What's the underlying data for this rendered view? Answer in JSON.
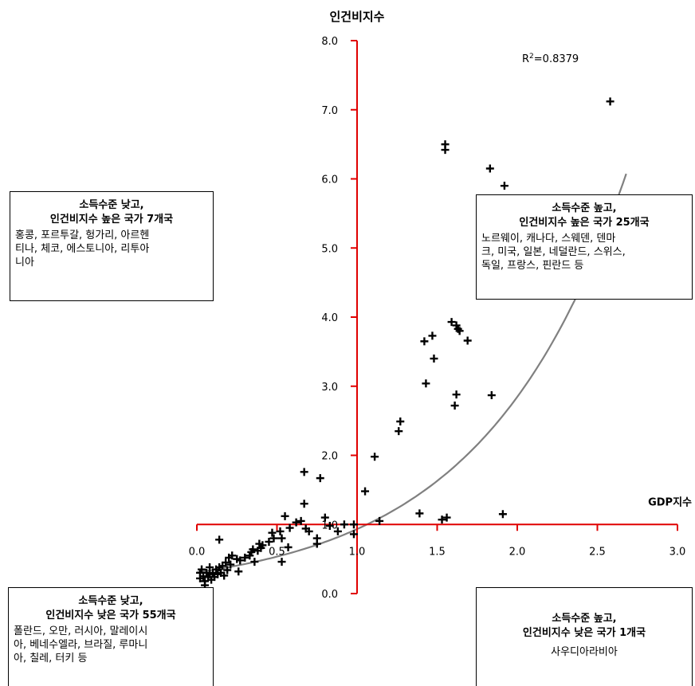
{
  "chart_data": {
    "type": "scatter",
    "ylabel": "인건비지수",
    "xlabel": "GDP지수",
    "xlim": [
      0.0,
      3.0
    ],
    "ylim": [
      0.0,
      8.0
    ],
    "x_ticks": [
      "0.0",
      "0.5",
      "1.0",
      "1.5",
      "2.0",
      "2.5",
      "3.0"
    ],
    "y_ticks": [
      "0.0",
      "1.0",
      "2.0",
      "3.0",
      "4.0",
      "5.0",
      "6.0",
      "7.0",
      "8.0"
    ],
    "axis_cross": {
      "x": 1.0,
      "y": 1.0
    },
    "trendline": {
      "type": "exponential",
      "a": 0.306,
      "b": 1.115,
      "r2_label": "R2=0.8379",
      "color": "#808080"
    },
    "axis_color": "#e00000",
    "marker": "+",
    "points": [
      [
        2.58,
        7.12
      ],
      [
        1.55,
        6.5
      ],
      [
        1.55,
        6.42
      ],
      [
        1.83,
        6.15
      ],
      [
        1.92,
        5.9
      ],
      [
        1.59,
        3.93
      ],
      [
        1.62,
        3.88
      ],
      [
        1.63,
        3.83
      ],
      [
        1.64,
        3.8
      ],
      [
        1.69,
        3.66
      ],
      [
        1.47,
        3.73
      ],
      [
        1.42,
        3.65
      ],
      [
        1.48,
        3.4
      ],
      [
        1.43,
        3.04
      ],
      [
        1.62,
        2.88
      ],
      [
        1.61,
        2.72
      ],
      [
        1.84,
        2.87
      ],
      [
        1.27,
        2.49
      ],
      [
        1.26,
        2.35
      ],
      [
        1.11,
        1.98
      ],
      [
        1.05,
        1.48
      ],
      [
        0.67,
        1.76
      ],
      [
        0.77,
        1.67
      ],
      [
        0.8,
        1.1
      ],
      [
        0.67,
        1.3
      ],
      [
        1.39,
        1.16
      ],
      [
        1.53,
        1.07
      ],
      [
        1.56,
        1.1
      ],
      [
        1.91,
        1.15
      ],
      [
        1.14,
        1.05
      ],
      [
        0.92,
        1.0
      ],
      [
        0.98,
        1.0
      ],
      [
        0.98,
        0.86
      ],
      [
        0.88,
        0.9
      ],
      [
        0.83,
        0.98
      ],
      [
        0.62,
        1.03
      ],
      [
        0.65,
        1.05
      ],
      [
        0.58,
        0.95
      ],
      [
        0.52,
        0.9
      ],
      [
        0.47,
        0.88
      ],
      [
        0.48,
        0.8
      ],
      [
        0.53,
        0.8
      ],
      [
        0.45,
        0.75
      ],
      [
        0.41,
        0.7
      ],
      [
        0.4,
        0.66
      ],
      [
        0.38,
        0.62
      ],
      [
        0.35,
        0.64
      ],
      [
        0.34,
        0.6
      ],
      [
        0.33,
        0.55
      ],
      [
        0.3,
        0.52
      ],
      [
        0.27,
        0.48
      ],
      [
        0.25,
        0.5
      ],
      [
        0.22,
        0.55
      ],
      [
        0.2,
        0.52
      ],
      [
        0.18,
        0.45
      ],
      [
        0.16,
        0.4
      ],
      [
        0.14,
        0.38
      ],
      [
        0.12,
        0.35
      ],
      [
        0.1,
        0.3
      ],
      [
        0.08,
        0.28
      ],
      [
        0.06,
        0.3
      ],
      [
        0.04,
        0.25
      ],
      [
        0.03,
        0.35
      ],
      [
        0.02,
        0.3
      ],
      [
        0.02,
        0.22
      ],
      [
        0.05,
        0.18
      ],
      [
        0.07,
        0.24
      ],
      [
        0.09,
        0.2
      ],
      [
        0.11,
        0.24
      ],
      [
        0.13,
        0.28
      ],
      [
        0.15,
        0.3
      ],
      [
        0.17,
        0.26
      ],
      [
        0.19,
        0.34
      ],
      [
        0.21,
        0.42
      ],
      [
        0.05,
        0.12
      ],
      [
        0.08,
        0.38
      ],
      [
        0.14,
        0.78
      ],
      [
        0.26,
        0.32
      ],
      [
        0.36,
        0.46
      ],
      [
        0.39,
        0.72
      ],
      [
        0.55,
        1.12
      ],
      [
        0.53,
        0.46
      ],
      [
        0.57,
        0.67
      ],
      [
        0.68,
        0.94
      ],
      [
        0.75,
        0.8
      ],
      [
        0.75,
        0.72
      ],
      [
        0.7,
        0.9
      ]
    ]
  },
  "r2": {
    "prefix": "R",
    "sup": "2",
    "value": "=0.8379"
  },
  "quadrants": {
    "top_left": {
      "title_line1": "소득수준 낮고,",
      "title_line2": "인건비지수 높은 국가 7개국",
      "body": [
        "홍콩, 포르투갈, 헝가리, 아르헨",
        "티나, 체코, 에스토니아, 리투아",
        "니아"
      ]
    },
    "top_right": {
      "title_line1": "소득수준 높고,",
      "title_line2": "인건비지수 높은 국가 25개국",
      "body": [
        "노르웨이, 캐나다, 스웨덴, 덴마",
        "크, 미국, 일본, 네덜란드, 스위스,",
        "독일, 프랑스, 핀란드 등"
      ]
    },
    "bottom_left": {
      "title_line1": "소득수준 낮고,",
      "title_line2": "인건비지수 낮은 국가 55개국",
      "body": [
        "폴란드, 오만, 러시아, 말레이시",
        "아, 베네수엘라, 브라질, 루마니",
        "아, 칠레, 터키 등"
      ]
    },
    "bottom_right": {
      "title_line1": "소득수준 높고,",
      "title_line2": "인건비지수 낮은 국가 1개국",
      "body": [
        "사우디아라비아"
      ]
    }
  }
}
